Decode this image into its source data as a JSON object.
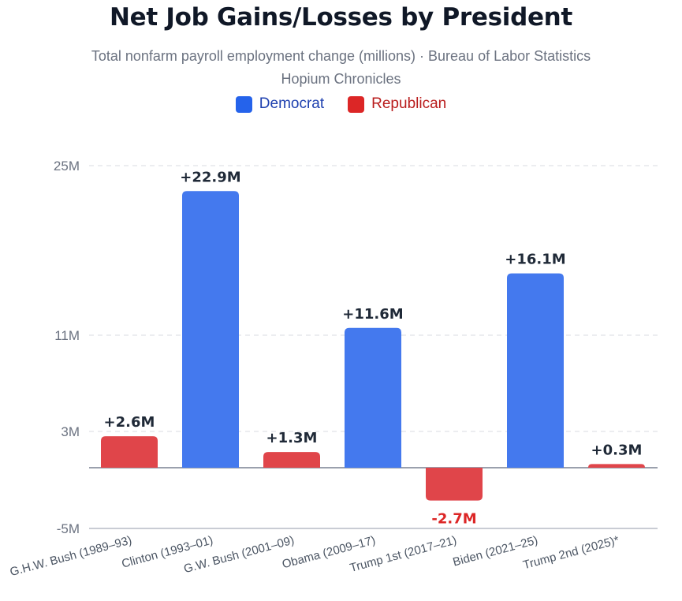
{
  "chart_data": {
    "type": "bar",
    "title": "Net Job Gains/Losses by President",
    "subtitle": "Total nonfarm payroll employment change (millions) · Bureau of Labor Statistics",
    "source_line": "Hopium Chronicles",
    "xlabel": "",
    "ylabel": "",
    "ylim": [
      -5,
      25
    ],
    "y_scale_note": "non-linear axis with ticks at -5, 3, 11, 25",
    "y_ticks": [
      {
        "value": -5,
        "label": "-5M"
      },
      {
        "value": 3,
        "label": "3M"
      },
      {
        "value": 11,
        "label": "11M"
      },
      {
        "value": 25,
        "label": "25M"
      }
    ],
    "grid": true,
    "legend": [
      {
        "name": "Democrat",
        "color": "#2563eb",
        "text_color": "#1e40af"
      },
      {
        "name": "Republican",
        "color": "#dc2626",
        "text_color": "#b91c1c"
      }
    ],
    "legend_position": "top-center",
    "categories": [
      "G.H.W. Bush (1989–93)",
      "Clinton (1993–01)",
      "G.W. Bush (2001–09)",
      "Obama (2009–17)",
      "Trump 1st (2017–21)",
      "Biden (2021–25)",
      "Trump 2nd (2025)*"
    ],
    "values": [
      2.6,
      22.9,
      1.3,
      11.6,
      -2.7,
      16.1,
      0.3
    ],
    "parties": [
      "Republican",
      "Democrat",
      "Republican",
      "Democrat",
      "Republican",
      "Democrat",
      "Republican"
    ],
    "data_labels": [
      "+2.6M",
      "+22.9M",
      "+1.3M",
      "+11.6M",
      "-2.7M",
      "+16.1M",
      "+0.3M"
    ],
    "colors": {
      "Democrat": "#4479ee",
      "Republican": "#e0454a",
      "positive_label": "#1f2937",
      "negative_label": "#dc2626",
      "grid": "#e5e7eb",
      "axis": "#9ca3af",
      "tick_text": "#6b7280"
    }
  }
}
